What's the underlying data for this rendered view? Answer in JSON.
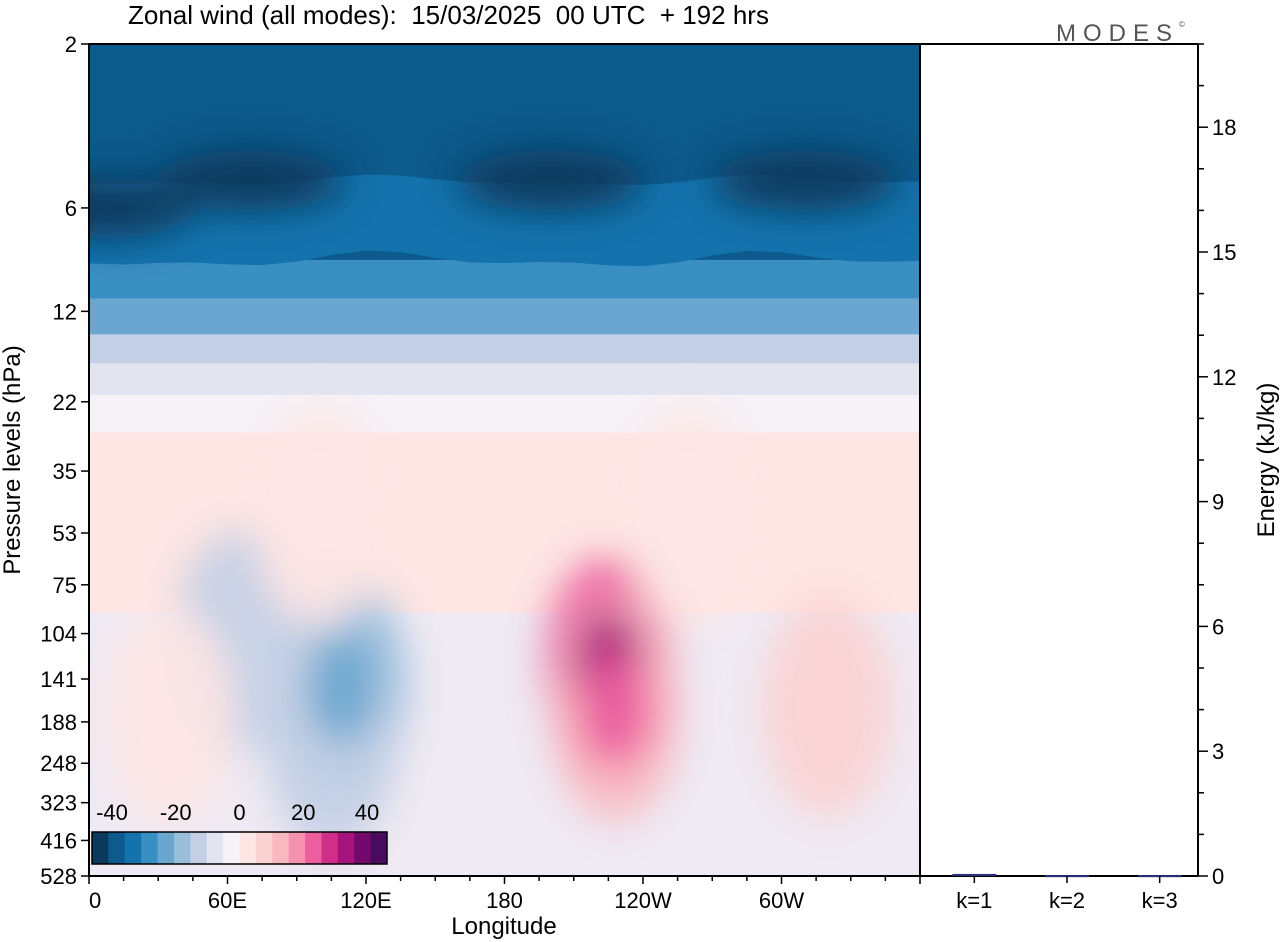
{
  "chart_data": [
    {
      "type": "heatmap",
      "title": "Zonal wind (all modes):  15/03/2025  00 UTC  + 192 hrs",
      "xlabel": "Longitude",
      "ylabel": "Pressure levels (hPa)",
      "x_ticks": [
        "0",
        "60E",
        "120E",
        "180",
        "120W",
        "60W"
      ],
      "y_ticks": [
        "2",
        "6",
        "12",
        "22",
        "35",
        "53",
        "75",
        "104",
        "141",
        "188",
        "248",
        "323",
        "416",
        "528"
      ],
      "colorbar": {
        "tick_labels": [
          "-40",
          "-20",
          "0",
          "20",
          "40"
        ],
        "colors": [
          "#0b3a5c",
          "#0d5a8c",
          "#1473ad",
          "#3a8fc2",
          "#6aa6cf",
          "#98bedc",
          "#c3cfe4",
          "#e2e4f0",
          "#f6f2f7",
          "#fde6e4",
          "#fbd2d2",
          "#f8b8c0",
          "#f592b0",
          "#ec5f9f",
          "#d12e8a",
          "#a6137a",
          "#73086d",
          "#4a0a5e"
        ]
      },
      "features": [
        {
          "lon": 200,
          "level": 5,
          "value": -45
        },
        {
          "lon": 70,
          "level": 5,
          "value": -40
        },
        {
          "lon": 310,
          "level": 5,
          "value": -38
        },
        {
          "lon": 5,
          "level": 6,
          "value": -36
        },
        {
          "lon": 110,
          "level": 150,
          "value": -15
        },
        {
          "lon": 105,
          "level": 215,
          "value": -10
        },
        {
          "lon": 65,
          "level": 110,
          "value": -8
        },
        {
          "lon": 225,
          "level": 130,
          "value": 25
        },
        {
          "lon": 228,
          "level": 175,
          "value": 16
        },
        {
          "lon": 320,
          "level": 170,
          "value": 12
        },
        {
          "lon": 35,
          "level": 180,
          "value": 5
        },
        {
          "lon": 100,
          "level": 48,
          "value": 6
        },
        {
          "lon": 260,
          "level": 48,
          "value": 6
        }
      ]
    },
    {
      "type": "bar",
      "ylabel": "Energy (kJ/kg)",
      "ylim": [
        0,
        20
      ],
      "y_ticks": [
        "0",
        "3",
        "6",
        "9",
        "12",
        "15",
        "18"
      ],
      "categories": [
        "k=1",
        "k=2",
        "k=3"
      ],
      "values": [
        0.05,
        0.02,
        0.02
      ]
    }
  ],
  "logo": {
    "text": "MODES",
    "mark": "©"
  }
}
